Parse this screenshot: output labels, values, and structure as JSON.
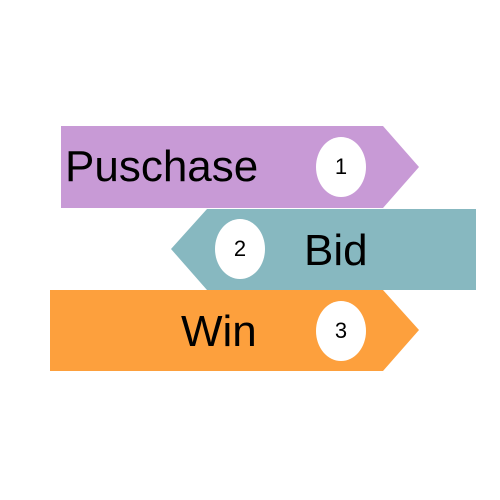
{
  "steps": [
    {
      "label": "Puschase",
      "number": "1",
      "color": "#c89ad6",
      "direction": "right"
    },
    {
      "label": "Bid",
      "number": "2",
      "color": "#87b8c0",
      "direction": "left"
    },
    {
      "label": "Win",
      "number": "3",
      "color": "#fda03d",
      "direction": "right"
    }
  ]
}
